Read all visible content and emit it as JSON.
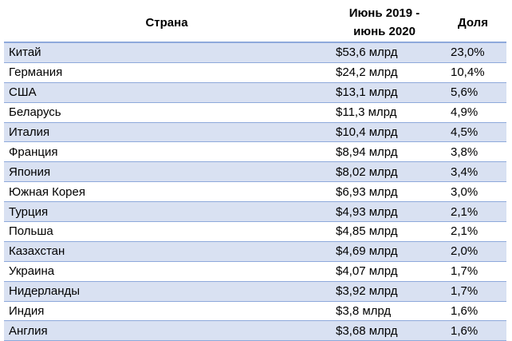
{
  "table": {
    "headers": {
      "country": "Страна",
      "value": "Июнь 2019 -\nиюнь 2020",
      "share": "Доля"
    },
    "rows": [
      {
        "country": "Китай",
        "value": "$53,6 млрд",
        "share": "23,0%"
      },
      {
        "country": "Германия",
        "value": "$24,2 млрд",
        "share": "10,4%"
      },
      {
        "country": "США",
        "value": "$13,1 млрд",
        "share": "5,6%"
      },
      {
        "country": "Беларусь",
        "value": "$11,3 млрд",
        "share": "4,9%"
      },
      {
        "country": "Италия",
        "value": "$10,4 млрд",
        "share": "4,5%"
      },
      {
        "country": "Франция",
        "value": "$8,94 млрд",
        "share": "3,8%"
      },
      {
        "country": "Япония",
        "value": "$8,02 млрд",
        "share": "3,4%"
      },
      {
        "country": "Южная Корея",
        "value": "$6,93 млрд",
        "share": "3,0%"
      },
      {
        "country": "Турция",
        "value": "$4,93 млрд",
        "share": "2,1%"
      },
      {
        "country": "Польша",
        "value": "$4,85 млрд",
        "share": "2,1%"
      },
      {
        "country": "Казахстан",
        "value": "$4,69 млрд",
        "share": "2,0%"
      },
      {
        "country": "Украина",
        "value": "$4,07 млрд",
        "share": "1,7%"
      },
      {
        "country": "Нидерланды",
        "value": "$3,92 млрд",
        "share": "1,7%"
      },
      {
        "country": "Индия",
        "value": "$3,8 млрд",
        "share": "1,6%"
      },
      {
        "country": "Англия",
        "value": "$3,68 млрд",
        "share": "1,6%"
      }
    ]
  },
  "colors": {
    "stripe": "#d9e1f2",
    "border": "#8ea9db",
    "background": "#ffffff"
  }
}
